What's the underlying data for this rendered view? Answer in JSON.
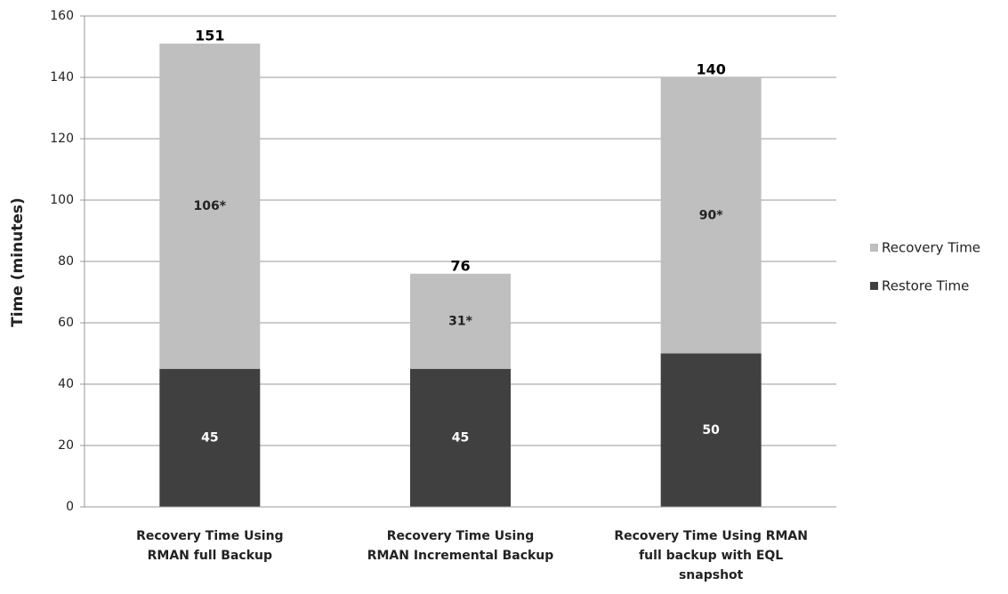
{
  "chart_data": {
    "type": "stacked_bar",
    "y_label": "Time (minutes)",
    "categories": [
      [
        "Recovery Time Using",
        "RMAN full Backup"
      ],
      [
        "Recovery Time Using",
        "RMAN Incremental  Backup"
      ],
      [
        "Recovery Time Using RMAN",
        "full backup with EQL",
        "snapshot"
      ]
    ],
    "series": [
      {
        "name": "Restore Time",
        "color": "#404040",
        "label_color": "#ffffff",
        "values": [
          45,
          45,
          50
        ]
      },
      {
        "name": "Recovery Time",
        "color": "#bfbfbf",
        "label_color": "#222222",
        "values": [
          106,
          31,
          90
        ],
        "value_labels": [
          "106*",
          "31*",
          "90*"
        ]
      }
    ],
    "totals": [
      151,
      76,
      140
    ],
    "ylim": [
      0,
      160
    ],
    "yticks": [
      0,
      20,
      40,
      60,
      80,
      100,
      120,
      140,
      160
    ],
    "grid": true,
    "legend": "right"
  }
}
